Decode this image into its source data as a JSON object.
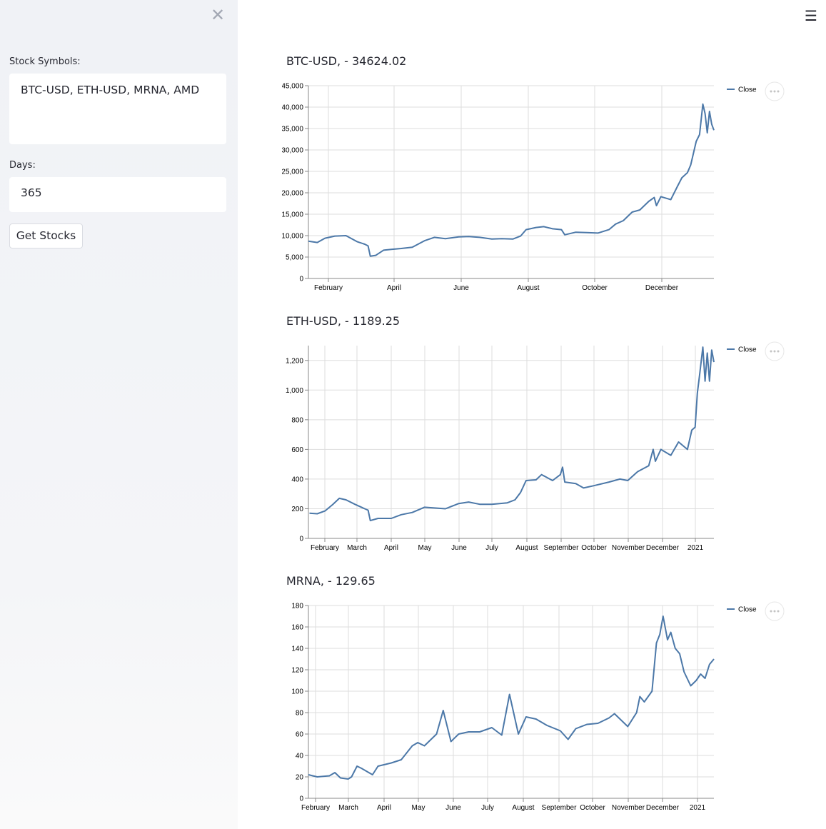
{
  "sidebar": {
    "close_glyph": "✕",
    "symbols_label": "Stock Symbols:",
    "symbols_value": "BTC-USD, ETH-USD, MRNA, AMD",
    "days_label": "Days:",
    "days_value": "365",
    "button_label": "Get Stocks"
  },
  "main_menu": {
    "glyph": "☰"
  },
  "charts": [
    {
      "title": "BTC-USD, - 34624.02"
    },
    {
      "title": "ETH-USD, - 1189.25"
    },
    {
      "title": "MRNA, - 129.65"
    }
  ],
  "chart_data": [
    {
      "type": "line",
      "title": "BTC-USD, - 34624.02",
      "series": [
        {
          "name": "Close",
          "color": "#4c78a8",
          "x": [
            "2020-01-17",
            "2020-01-25",
            "2020-02-01",
            "2020-02-10",
            "2020-02-20",
            "2020-03-01",
            "2020-03-08",
            "2020-03-11",
            "2020-03-13",
            "2020-03-18",
            "2020-03-25",
            "2020-04-01",
            "2020-04-10",
            "2020-04-20",
            "2020-05-01",
            "2020-05-10",
            "2020-05-20",
            "2020-06-01",
            "2020-06-10",
            "2020-06-20",
            "2020-07-01",
            "2020-07-10",
            "2020-07-20",
            "2020-07-27",
            "2020-08-01",
            "2020-08-10",
            "2020-08-17",
            "2020-08-25",
            "2020-09-02",
            "2020-09-05",
            "2020-09-15",
            "2020-09-25",
            "2020-10-05",
            "2020-10-15",
            "2020-10-21",
            "2020-10-28",
            "2020-11-05",
            "2020-11-12",
            "2020-11-20",
            "2020-11-25",
            "2020-11-27",
            "2020-12-01",
            "2020-12-10",
            "2020-12-16",
            "2020-12-20",
            "2020-12-25",
            "2020-12-28",
            "2021-01-02",
            "2021-01-05",
            "2021-01-08",
            "2021-01-10",
            "2021-01-12",
            "2021-01-14",
            "2021-01-16",
            "2021-01-18"
          ],
          "values": [
            8700,
            8400,
            9400,
            9900,
            10000,
            8600,
            8000,
            7600,
            5200,
            5400,
            6600,
            6800,
            7000,
            7300,
            8800,
            9600,
            9300,
            9700,
            9800,
            9600,
            9200,
            9300,
            9200,
            9900,
            11400,
            11900,
            12100,
            11600,
            11400,
            10200,
            10800,
            10700,
            10600,
            11400,
            12700,
            13500,
            15500,
            16000,
            18000,
            18900,
            17000,
            19100,
            18400,
            21500,
            23500,
            24700,
            26500,
            32000,
            33600,
            40700,
            38500,
            34000,
            39000,
            36000,
            34624
          ]
        }
      ],
      "xticks": [
        "February",
        "April",
        "June",
        "August",
        "October",
        "December"
      ],
      "yticks": [
        "0",
        "5,000",
        "10,000",
        "15,000",
        "20,000",
        "25,000",
        "30,000",
        "35,000",
        "40,000",
        "45,000"
      ],
      "ylim": [
        0,
        45000
      ],
      "grid": true,
      "legend": "top-right"
    },
    {
      "type": "line",
      "title": "ETH-USD, - 1189.25",
      "series": [
        {
          "name": "Close",
          "color": "#4c78a8",
          "x": [
            "2020-01-18",
            "2020-01-25",
            "2020-02-01",
            "2020-02-08",
            "2020-02-14",
            "2020-02-20",
            "2020-02-28",
            "2020-03-08",
            "2020-03-11",
            "2020-03-13",
            "2020-03-20",
            "2020-04-01",
            "2020-04-10",
            "2020-04-20",
            "2020-05-01",
            "2020-05-10",
            "2020-05-20",
            "2020-06-01",
            "2020-06-10",
            "2020-06-20",
            "2020-07-01",
            "2020-07-15",
            "2020-07-22",
            "2020-07-27",
            "2020-08-01",
            "2020-08-10",
            "2020-08-15",
            "2020-08-25",
            "2020-09-01",
            "2020-09-03",
            "2020-09-05",
            "2020-09-15",
            "2020-09-22",
            "2020-10-01",
            "2020-10-15",
            "2020-10-25",
            "2020-11-01",
            "2020-11-10",
            "2020-11-20",
            "2020-11-24",
            "2020-11-26",
            "2020-12-01",
            "2020-12-10",
            "2020-12-17",
            "2020-12-25",
            "2020-12-29",
            "2021-01-01",
            "2021-01-03",
            "2021-01-05",
            "2021-01-08",
            "2021-01-10",
            "2021-01-12",
            "2021-01-14",
            "2021-01-16",
            "2021-01-18"
          ],
          "values": [
            170,
            166,
            185,
            228,
            270,
            260,
            230,
            200,
            190,
            120,
            135,
            135,
            160,
            175,
            210,
            205,
            200,
            235,
            245,
            230,
            230,
            240,
            260,
            310,
            390,
            395,
            430,
            390,
            430,
            480,
            380,
            370,
            340,
            355,
            380,
            400,
            390,
            450,
            490,
            600,
            520,
            600,
            560,
            650,
            600,
            730,
            750,
            980,
            1100,
            1290,
            1060,
            1250,
            1060,
            1270,
            1189
          ]
        }
      ],
      "xticks": [
        "February",
        "March",
        "April",
        "May",
        "June",
        "July",
        "August",
        "September",
        "October",
        "November",
        "December",
        "2021"
      ],
      "yticks": [
        "0",
        "200",
        "400",
        "600",
        "800",
        "1,000",
        "1,200"
      ],
      "ylim": [
        0,
        1300
      ],
      "grid": true,
      "legend": "top-right"
    },
    {
      "type": "line",
      "title": "MRNA, - 129.65",
      "series": [
        {
          "name": "Close",
          "color": "#4c78a8",
          "x": [
            "2020-01-17",
            "2020-01-25",
            "2020-02-05",
            "2020-02-10",
            "2020-02-15",
            "2020-02-22",
            "2020-02-25",
            "2020-03-01",
            "2020-03-05",
            "2020-03-10",
            "2020-03-15",
            "2020-03-20",
            "2020-04-01",
            "2020-04-10",
            "2020-04-20",
            "2020-04-25",
            "2020-05-01",
            "2020-05-12",
            "2020-05-18",
            "2020-05-25",
            "2020-06-01",
            "2020-06-10",
            "2020-06-20",
            "2020-07-01",
            "2020-07-10",
            "2020-07-17",
            "2020-07-25",
            "2020-08-01",
            "2020-08-10",
            "2020-08-20",
            "2020-09-01",
            "2020-09-08",
            "2020-09-15",
            "2020-09-25",
            "2020-10-05",
            "2020-10-15",
            "2020-10-20",
            "2020-11-01",
            "2020-11-09",
            "2020-11-12",
            "2020-11-16",
            "2020-11-23",
            "2020-11-27",
            "2020-11-30",
            "2020-12-03",
            "2020-12-07",
            "2020-12-10",
            "2020-12-14",
            "2020-12-18",
            "2020-12-22",
            "2020-12-28",
            "2021-01-02",
            "2021-01-06",
            "2021-01-10",
            "2021-01-14",
            "2021-01-18"
          ],
          "values": [
            22,
            20,
            21,
            24,
            19,
            18,
            20,
            30,
            28,
            25,
            22,
            30,
            33,
            36,
            49,
            52,
            49,
            60,
            82,
            53,
            60,
            62,
            62,
            66,
            59,
            97,
            60,
            76,
            74,
            68,
            63,
            55,
            65,
            69,
            70,
            75,
            79,
            67,
            80,
            95,
            90,
            100,
            145,
            153,
            170,
            148,
            155,
            140,
            135,
            118,
            105,
            110,
            116,
            112,
            125,
            130
          ]
        }
      ],
      "xticks": [
        "February",
        "March",
        "April",
        "May",
        "June",
        "July",
        "August",
        "September",
        "October",
        "November",
        "December",
        "2021"
      ],
      "yticks": [
        "0",
        "20",
        "40",
        "60",
        "80",
        "100",
        "120",
        "140",
        "160",
        "180"
      ],
      "ylim": [
        0,
        180
      ],
      "grid": true,
      "legend": "top-right"
    }
  ]
}
